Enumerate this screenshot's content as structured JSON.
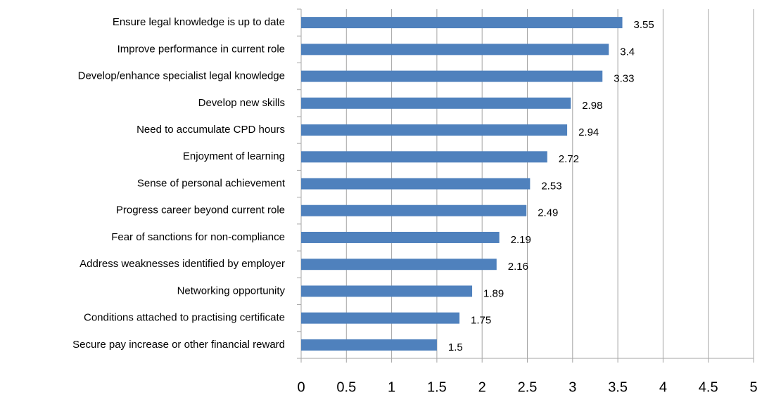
{
  "chart_data": {
    "type": "bar",
    "orientation": "horizontal",
    "categories": [
      "Ensure legal knowledge is up to date",
      "Improve performance in current role",
      "Develop/enhance specialist legal knowledge",
      "Develop new skills",
      "Need to accumulate CPD hours",
      "Enjoyment of learning",
      "Sense of personal achievement",
      "Progress career beyond current role",
      "Fear of sanctions for non-compliance",
      "Address weaknesses identified by employer",
      "Networking opportunity",
      "Conditions attached to practising certificate",
      "Secure pay increase or other financial reward"
    ],
    "values": [
      3.55,
      3.4,
      3.33,
      2.98,
      2.94,
      2.72,
      2.53,
      2.49,
      2.19,
      2.16,
      1.89,
      1.75,
      1.5
    ],
    "color": "#4f81bd",
    "xlim": [
      0,
      5
    ],
    "xticks": [
      0,
      0.5,
      1,
      1.5,
      2,
      2.5,
      3,
      3.5,
      4,
      4.5,
      5
    ],
    "grid": true
  }
}
